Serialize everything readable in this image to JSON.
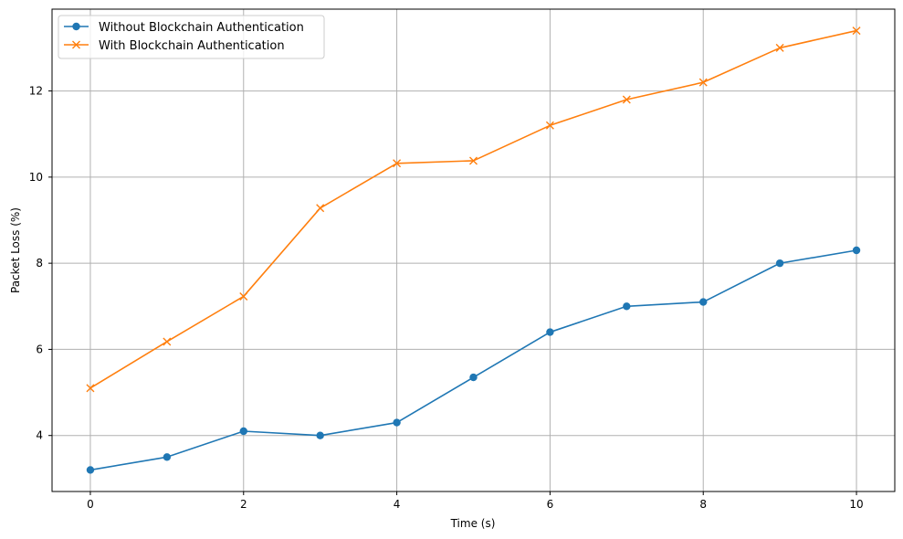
{
  "chart_data": {
    "type": "line",
    "title": "",
    "xlabel": "Time (s)",
    "ylabel": "Packet Loss (%)",
    "x": [
      0,
      1,
      2,
      3,
      4,
      5,
      6,
      7,
      8,
      9,
      10
    ],
    "xlim": [
      -0.5,
      10.5
    ],
    "ylim": [
      2.7,
      13.9
    ],
    "xticks": [
      0,
      2,
      4,
      6,
      8,
      10
    ],
    "yticks": [
      4,
      6,
      8,
      10,
      12
    ],
    "grid": true,
    "legend_position": "top-left",
    "series": [
      {
        "name": "Without Blockchain Authentication",
        "color": "#1f77b4",
        "marker": "circle",
        "values": [
          3.2,
          3.5,
          4.1,
          4.0,
          4.3,
          5.35,
          6.4,
          7.0,
          7.1,
          8.0,
          8.3
        ]
      },
      {
        "name": "With Blockchain Authentication",
        "color": "#ff7f0e",
        "marker": "x",
        "values": [
          5.1,
          6.18,
          7.23,
          9.28,
          10.32,
          10.38,
          11.2,
          11.8,
          12.2,
          13.0,
          13.4
        ]
      }
    ]
  }
}
